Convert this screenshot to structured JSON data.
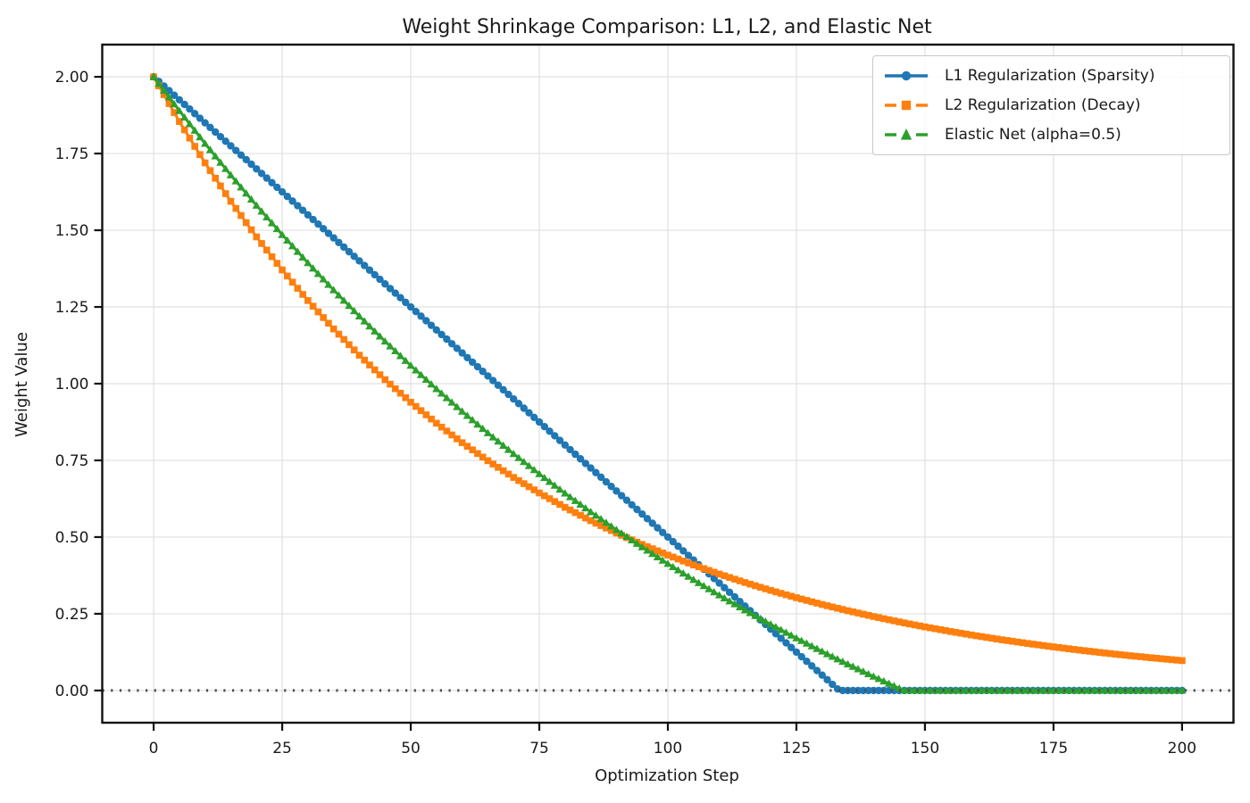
{
  "figure": {
    "background": "#ffffff",
    "text_color": "#1a1a1a",
    "grid_color": "#e0e0e0",
    "spine_color": "#111111"
  },
  "chart_data": {
    "type": "line",
    "title": "Weight Shrinkage Comparison: L1, L2, and Elastic Net",
    "xlabel": "Optimization Step",
    "ylabel": "Weight Value",
    "xlim": [
      -10,
      210
    ],
    "ylim": [
      -0.105,
      2.105
    ],
    "x_ticks": [
      0,
      25,
      50,
      75,
      100,
      125,
      150,
      175,
      200
    ],
    "x_tick_labels": [
      "0",
      "25",
      "50",
      "75",
      "100",
      "125",
      "150",
      "175",
      "200"
    ],
    "y_ticks": [
      0.0,
      0.25,
      0.5,
      0.75,
      1.0,
      1.25,
      1.5,
      1.75,
      2.0
    ],
    "y_tick_labels": [
      "0.00",
      "0.25",
      "0.50",
      "0.75",
      "1.00",
      "1.25",
      "1.50",
      "1.75",
      "2.00"
    ],
    "grid": true,
    "legend_position": "upper right",
    "x": [
      0,
      5,
      10,
      15,
      20,
      25,
      30,
      35,
      40,
      45,
      50,
      55,
      60,
      65,
      70,
      75,
      80,
      85,
      90,
      95,
      100,
      105,
      110,
      115,
      120,
      125,
      130,
      133.33,
      135,
      140,
      145,
      145.93,
      150,
      155,
      160,
      165,
      170,
      175,
      180,
      185,
      190,
      195,
      200
    ],
    "series": [
      {
        "name": "L1 Regularization (Sparsity)",
        "color": "#1f77b4",
        "marker": "circle",
        "linestyle": "solid",
        "values": [
          2.0,
          1.925,
          1.85,
          1.775,
          1.7,
          1.625,
          1.55,
          1.475,
          1.4,
          1.325,
          1.25,
          1.175,
          1.1,
          1.025,
          0.95,
          0.875,
          0.8,
          0.725,
          0.65,
          0.575,
          0.5,
          0.425,
          0.35,
          0.275,
          0.2,
          0.125,
          0.05,
          0,
          0,
          0,
          0,
          0,
          0,
          0,
          0,
          0,
          0,
          0,
          0,
          0,
          0,
          0,
          0
        ]
      },
      {
        "name": "L2 Regularization (Decay)",
        "color": "#ff7f0e",
        "marker": "square",
        "linestyle": "dashed",
        "values": [
          2.0,
          1.8544,
          1.7195,
          1.5943,
          1.4783,
          1.3707,
          1.2709,
          1.1784,
          1.0927,
          1.0131,
          0.9394,
          0.871,
          0.8076,
          0.7489,
          0.6944,
          0.6438,
          0.597,
          0.5535,
          0.5132,
          0.4759,
          0.4412,
          0.4091,
          0.3794,
          0.3518,
          0.3261,
          0.3024,
          0.2804,
          0.2666,
          0.26,
          0.2411,
          0.2235,
          0.2203,
          0.2073,
          0.1922,
          0.1782,
          0.1652,
          0.1532,
          0.1421,
          0.1317,
          0.1221,
          0.1132,
          0.105,
          0.0974
        ]
      },
      {
        "name": "Elastic Net (alpha=0.5)",
        "color": "#2ca02c",
        "marker": "triangle",
        "linestyle": "dashed",
        "values": [
          2.0,
          1.8892,
          1.7824,
          1.6797,
          1.5807,
          1.4853,
          1.3935,
          1.3051,
          1.2199,
          1.1379,
          1.059,
          0.9829,
          0.9096,
          0.8391,
          0.7712,
          0.7057,
          0.6427,
          0.582,
          0.5236,
          0.4673,
          0.4131,
          0.3609,
          0.3106,
          0.2622,
          0.2156,
          0.1707,
          0.1274,
          0.0994,
          0.0858,
          0.0457,
          0.007,
          0,
          0,
          0,
          0,
          0,
          0,
          0,
          0,
          0,
          0,
          0,
          0
        ]
      }
    ],
    "annotations": [
      {
        "type": "hline",
        "y": 0,
        "style": "dotted",
        "color": "#4d4d4d"
      }
    ]
  }
}
